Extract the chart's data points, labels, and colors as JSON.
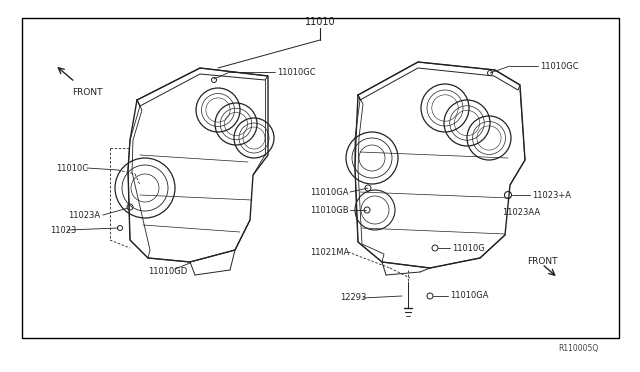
{
  "bg_color": "#ffffff",
  "border_color": "#000000",
  "line_color": "#222222",
  "text_color": "#222222",
  "ref_code": "R110005Q",
  "labels": {
    "top_center": "11010",
    "left_front": "FRONT",
    "right_front": "FRONT",
    "l_11010C": "11010C",
    "l_11010GC_left": "11010GC",
    "l_11010GC_right": "11010GC",
    "l_11010GA_mid": "11010GA",
    "l_11010GA_bot": "11010GA",
    "l_11010GB": "11010GB",
    "l_11010GD": "11010GD",
    "l_11023A": "11023A",
    "l_11023": "11023",
    "l_11023AA": "11023AA",
    "l_11023pA": "11023+A",
    "l_11010G": "11010G",
    "l_11021MA": "11021MA",
    "l_12293": "12293"
  }
}
